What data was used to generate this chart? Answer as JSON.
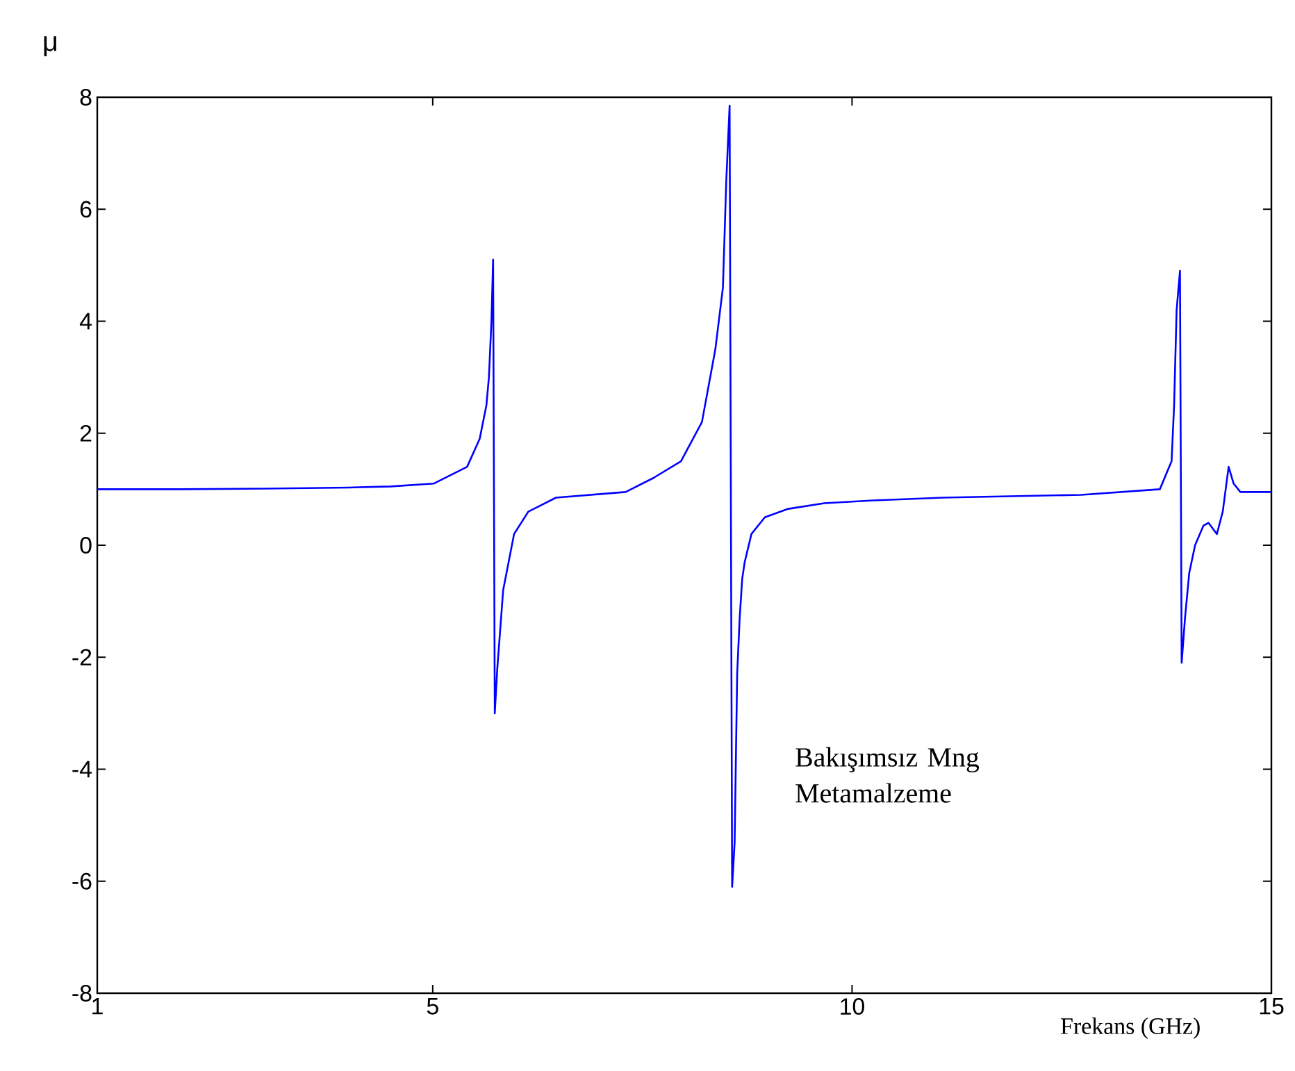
{
  "chart_data": {
    "type": "line",
    "ylabel": "μ",
    "xlabel": "Frekans (GHz)",
    "annotations": [
      "Bakışımsız Mng Metamalzeme"
    ],
    "xlim": [
      1,
      15
    ],
    "ylim": [
      -8,
      8
    ],
    "xticks": [
      1,
      5,
      10,
      15
    ],
    "yticks": [
      -8,
      -6,
      -4,
      -2,
      0,
      2,
      4,
      6,
      8
    ],
    "grid": false,
    "series": [
      {
        "color": "#0000ff",
        "x": [
          1,
          2,
          3,
          4,
          4.5,
          5.01,
          5.41,
          5.56,
          5.64,
          5.67,
          5.7,
          5.72,
          5.74,
          5.77,
          5.84,
          5.97,
          6.14,
          6.47,
          7.3,
          7.63,
          7.96,
          8.21,
          8.37,
          8.46,
          8.5,
          8.54,
          8.57,
          8.6,
          8.63,
          8.66,
          8.69,
          8.72,
          8.8,
          8.96,
          9.24,
          9.67,
          10.25,
          11.08,
          12.73,
          13.67,
          13.81,
          13.84,
          13.87,
          13.91,
          13.93,
          13.97,
          14.02,
          14.09,
          14.19,
          14.25,
          14.35,
          14.42,
          14.49,
          14.55,
          14.63,
          15
        ],
        "values": [
          1.0,
          1.0,
          1.01,
          1.03,
          1.05,
          1.1,
          1.4,
          1.9,
          2.5,
          3.0,
          4.0,
          5.1,
          -3.0,
          -2.2,
          -0.8,
          0.2,
          0.6,
          0.85,
          0.95,
          1.2,
          1.5,
          2.2,
          3.5,
          4.6,
          6.5,
          7.85,
          -6.1,
          -5.3,
          -2.3,
          -1.3,
          -0.6,
          -0.3,
          0.2,
          0.5,
          0.65,
          0.75,
          0.8,
          0.85,
          0.9,
          1.0,
          1.5,
          2.5,
          4.2,
          4.9,
          -2.1,
          -1.3,
          -0.5,
          0.0,
          0.35,
          0.4,
          0.2,
          0.6,
          1.4,
          1.1,
          0.95,
          0.95
        ]
      }
    ]
  }
}
